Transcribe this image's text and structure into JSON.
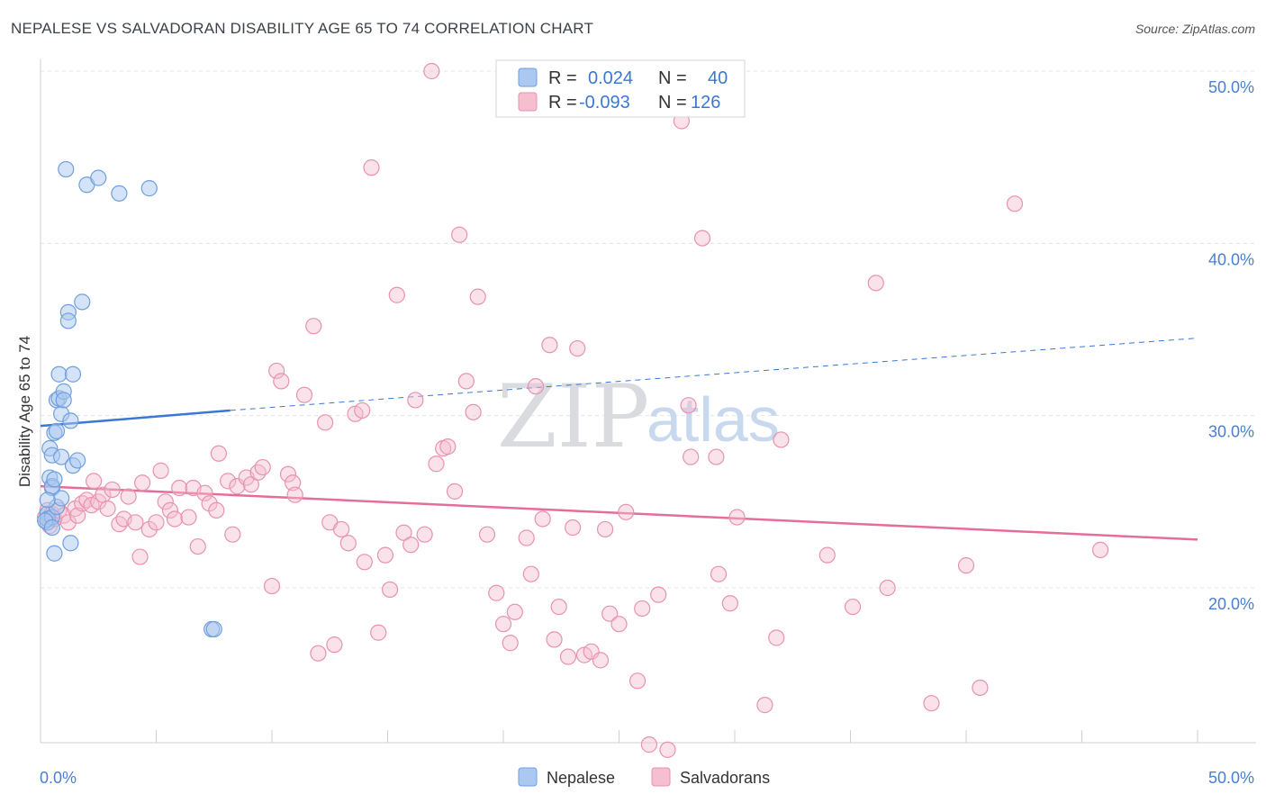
{
  "title": "NEPALESE VS SALVADORAN DISABILITY AGE 65 TO 74 CORRELATION CHART",
  "source": "Source: ZipAtlas.com",
  "watermark": {
    "zip": "ZIP",
    "atlas": "atlas"
  },
  "colors": {
    "nepalese_fill": "#aac8f0",
    "nepalese_stroke": "#6f9fdc",
    "nepalese_line": "#3a78d4",
    "salvadoran_fill": "#f5bfd0",
    "salvadoran_stroke": "#e892ae",
    "salvadoran_line": "#e46e99",
    "tick_text": "#4a7fd0",
    "grid": "#e4e4e4"
  },
  "legend_top": {
    "nepalese": {
      "r_label": "R =",
      "r_value": "0.024",
      "n_label": "N =",
      "n_value": "40"
    },
    "salvadoran": {
      "r_label": "R =",
      "r_value": "-0.093",
      "n_label": "N =",
      "n_value": "126"
    }
  },
  "chart_data": {
    "type": "scatter",
    "title": "NEPALESE VS SALVADORAN DISABILITY AGE 65 TO 74 CORRELATION CHART",
    "xlabel": "",
    "ylabel": "Disability Age 65 to 74",
    "xlim": [
      0,
      50
    ],
    "ylim": [
      11,
      51
    ],
    "x_tick_labels": [
      "0.0%",
      "50.0%"
    ],
    "y_tick_labels": [
      {
        "value": 20,
        "label": "20.0%"
      },
      {
        "value": 30,
        "label": "30.0%"
      },
      {
        "value": 40,
        "label": "40.0%"
      },
      {
        "value": 50,
        "label": "50.0%"
      }
    ],
    "grid": true,
    "legend": "bottom-center",
    "series": [
      {
        "name": "Nepalese",
        "points": [
          [
            0.3,
            23.8
          ],
          [
            0.3,
            24.3
          ],
          [
            0.3,
            24.0
          ],
          [
            0.4,
            26.4
          ],
          [
            0.4,
            28.1
          ],
          [
            0.5,
            25.8
          ],
          [
            0.5,
            24.1
          ],
          [
            0.5,
            25.9
          ],
          [
            0.5,
            27.7
          ],
          [
            0.6,
            26.3
          ],
          [
            0.6,
            29.0
          ],
          [
            0.6,
            22.0
          ],
          [
            0.7,
            30.9
          ],
          [
            0.7,
            29.1
          ],
          [
            0.7,
            24.7
          ],
          [
            0.8,
            32.4
          ],
          [
            0.8,
            31.0
          ],
          [
            0.9,
            30.1
          ],
          [
            0.9,
            25.2
          ],
          [
            0.9,
            27.6
          ],
          [
            1.0,
            31.4
          ],
          [
            1.0,
            30.9
          ],
          [
            1.1,
            44.3
          ],
          [
            1.2,
            36.0
          ],
          [
            1.2,
            35.5
          ],
          [
            1.3,
            29.7
          ],
          [
            1.3,
            22.6
          ],
          [
            1.4,
            27.1
          ],
          [
            1.4,
            32.4
          ],
          [
            1.6,
            27.4
          ],
          [
            1.8,
            36.6
          ],
          [
            2.0,
            43.4
          ],
          [
            2.5,
            43.8
          ],
          [
            3.4,
            42.9
          ],
          [
            4.7,
            43.2
          ],
          [
            7.4,
            17.6
          ],
          [
            7.5,
            17.6
          ],
          [
            0.2,
            23.9
          ],
          [
            0.3,
            25.1
          ],
          [
            0.5,
            23.5
          ]
        ],
        "trend": {
          "x0": 0,
          "y0": 29.4,
          "x1": 8.2,
          "y1": 30.3,
          "dashed_to_x": 50,
          "dashed_to_y": 34.5
        }
      },
      {
        "name": "Salvadorans",
        "points": [
          [
            0.2,
            24.1
          ],
          [
            0.3,
            24.5
          ],
          [
            0.4,
            23.6
          ],
          [
            0.5,
            24.3
          ],
          [
            0.6,
            24.0
          ],
          [
            0.8,
            24.5
          ],
          [
            1.0,
            24.2
          ],
          [
            1.2,
            23.8
          ],
          [
            1.5,
            24.6
          ],
          [
            1.6,
            24.2
          ],
          [
            1.8,
            24.9
          ],
          [
            2.0,
            25.1
          ],
          [
            2.2,
            24.8
          ],
          [
            2.3,
            26.2
          ],
          [
            2.5,
            25.0
          ],
          [
            2.7,
            25.4
          ],
          [
            2.9,
            24.6
          ],
          [
            3.1,
            25.7
          ],
          [
            3.4,
            23.7
          ],
          [
            3.6,
            24.0
          ],
          [
            3.8,
            25.3
          ],
          [
            4.1,
            23.8
          ],
          [
            4.3,
            21.8
          ],
          [
            4.4,
            26.1
          ],
          [
            4.7,
            23.4
          ],
          [
            5.0,
            23.8
          ],
          [
            5.2,
            26.8
          ],
          [
            5.4,
            25.0
          ],
          [
            5.6,
            24.5
          ],
          [
            5.8,
            24.0
          ],
          [
            6.0,
            25.8
          ],
          [
            6.4,
            24.1
          ],
          [
            6.6,
            25.8
          ],
          [
            6.8,
            22.4
          ],
          [
            7.1,
            25.5
          ],
          [
            7.3,
            24.9
          ],
          [
            7.6,
            24.5
          ],
          [
            7.7,
            27.8
          ],
          [
            8.1,
            26.2
          ],
          [
            8.3,
            23.1
          ],
          [
            8.5,
            25.9
          ],
          [
            8.9,
            26.4
          ],
          [
            9.1,
            26.0
          ],
          [
            9.4,
            26.7
          ],
          [
            9.6,
            27.0
          ],
          [
            10.0,
            20.1
          ],
          [
            10.2,
            32.6
          ],
          [
            10.4,
            32.0
          ],
          [
            10.7,
            26.6
          ],
          [
            10.9,
            26.1
          ],
          [
            11.0,
            25.4
          ],
          [
            11.4,
            31.2
          ],
          [
            11.8,
            35.2
          ],
          [
            12.0,
            16.2
          ],
          [
            12.3,
            29.6
          ],
          [
            12.5,
            23.8
          ],
          [
            12.7,
            16.7
          ],
          [
            13.0,
            23.4
          ],
          [
            13.3,
            22.6
          ],
          [
            13.6,
            30.1
          ],
          [
            13.9,
            30.3
          ],
          [
            14.0,
            21.5
          ],
          [
            14.3,
            44.4
          ],
          [
            14.6,
            17.4
          ],
          [
            14.9,
            21.9
          ],
          [
            15.1,
            19.9
          ],
          [
            15.4,
            37.0
          ],
          [
            15.7,
            23.2
          ],
          [
            16.0,
            22.5
          ],
          [
            16.2,
            30.9
          ],
          [
            16.6,
            23.1
          ],
          [
            16.9,
            50.0
          ],
          [
            17.1,
            27.2
          ],
          [
            17.4,
            28.1
          ],
          [
            17.6,
            28.2
          ],
          [
            17.9,
            25.6
          ],
          [
            18.1,
            40.5
          ],
          [
            18.4,
            32.0
          ],
          [
            18.7,
            30.2
          ],
          [
            18.9,
            36.9
          ],
          [
            19.3,
            23.1
          ],
          [
            19.7,
            19.7
          ],
          [
            20.0,
            17.9
          ],
          [
            20.3,
            16.8
          ],
          [
            20.5,
            18.6
          ],
          [
            21.0,
            22.9
          ],
          [
            21.2,
            20.8
          ],
          [
            21.4,
            31.7
          ],
          [
            21.7,
            24.0
          ],
          [
            22.0,
            34.1
          ],
          [
            22.2,
            17.0
          ],
          [
            22.4,
            18.9
          ],
          [
            22.8,
            16.0
          ],
          [
            23.0,
            23.5
          ],
          [
            23.2,
            33.9
          ],
          [
            23.5,
            16.1
          ],
          [
            23.8,
            16.3
          ],
          [
            24.2,
            15.8
          ],
          [
            24.4,
            23.4
          ],
          [
            24.6,
            18.5
          ],
          [
            25.0,
            17.9
          ],
          [
            25.3,
            24.4
          ],
          [
            25.8,
            14.6
          ],
          [
            26.0,
            18.8
          ],
          [
            26.3,
            10.9
          ],
          [
            26.7,
            19.6
          ],
          [
            27.1,
            10.6
          ],
          [
            27.7,
            47.1
          ],
          [
            28.0,
            30.6
          ],
          [
            28.1,
            27.6
          ],
          [
            28.6,
            40.3
          ],
          [
            29.2,
            27.6
          ],
          [
            29.3,
            20.8
          ],
          [
            29.8,
            19.1
          ],
          [
            30.1,
            24.1
          ],
          [
            31.3,
            13.2
          ],
          [
            31.8,
            17.1
          ],
          [
            32.0,
            28.6
          ],
          [
            34.0,
            21.9
          ],
          [
            35.1,
            18.9
          ],
          [
            36.1,
            37.7
          ],
          [
            36.6,
            20.0
          ],
          [
            38.5,
            13.3
          ],
          [
            40.0,
            21.3
          ],
          [
            40.6,
            14.2
          ],
          [
            42.1,
            42.3
          ],
          [
            45.8,
            22.2
          ]
        ],
        "trend": {
          "x0": 0,
          "y0": 25.9,
          "x1": 50,
          "y1": 22.8
        }
      }
    ]
  },
  "legend_bottom": [
    {
      "label": "Nepalese"
    },
    {
      "label": "Salvadorans"
    }
  ]
}
